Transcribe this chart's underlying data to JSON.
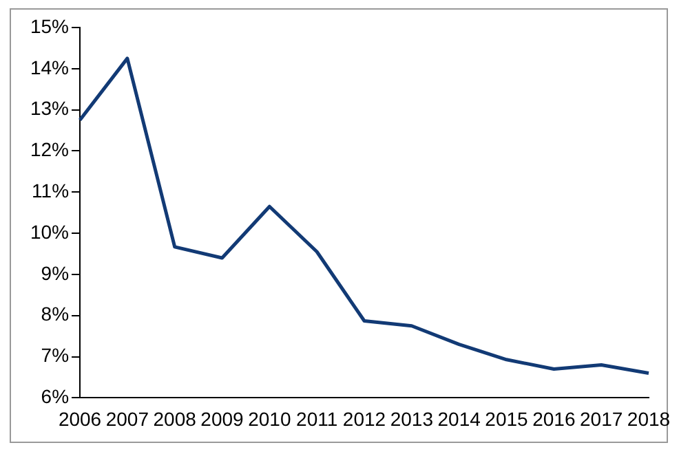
{
  "chart_data": {
    "type": "line",
    "categories": [
      "2006",
      "2007",
      "2008",
      "2009",
      "2010",
      "2011",
      "2012",
      "2013",
      "2014",
      "2015",
      "2016",
      "2017",
      "2018"
    ],
    "series": [
      {
        "color": "#123a75",
        "values": [
          12.75,
          14.25,
          9.67,
          9.4,
          10.65,
          9.55,
          7.87,
          7.75,
          7.3,
          6.93,
          6.7,
          6.8,
          6.6
        ]
      }
    ],
    "ylim": [
      6,
      15
    ],
    "yticks": [
      {
        "value": 6,
        "label": "6%"
      },
      {
        "value": 7,
        "label": "7%"
      },
      {
        "value": 8,
        "label": "8%"
      },
      {
        "value": 9,
        "label": "9%"
      },
      {
        "value": 10,
        "label": "10%"
      },
      {
        "value": 11,
        "label": "11%"
      },
      {
        "value": 12,
        "label": "12%"
      },
      {
        "value": 13,
        "label": "13%"
      },
      {
        "value": 14,
        "label": "14%"
      },
      {
        "value": 15,
        "label": "15%"
      }
    ],
    "grid": false,
    "legend": false,
    "marker": "none",
    "line_style": "solid"
  }
}
